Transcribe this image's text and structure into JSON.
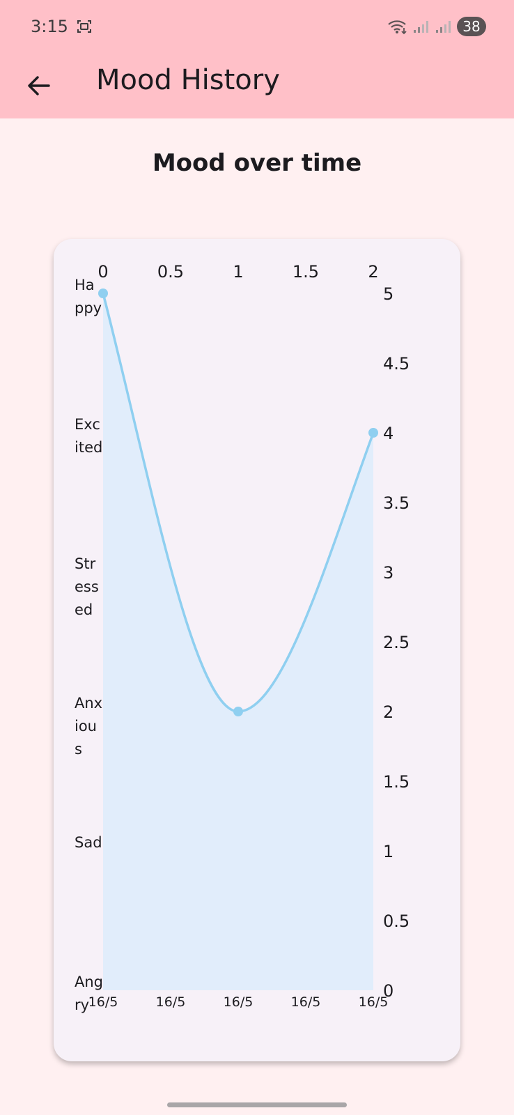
{
  "status_bar": {
    "time": "3:15",
    "battery": "38"
  },
  "app_bar": {
    "title": "Mood History",
    "back_icon": "arrow-left-icon"
  },
  "colors": {
    "app_bar": "#ffc0c8",
    "line": "#8fcff0",
    "fill": "#e1edfb",
    "card": "#f7f1f8"
  },
  "chart_data": {
    "type": "line",
    "title": "Mood over time",
    "x": [
      0,
      1,
      2
    ],
    "y": [
      5,
      2,
      4
    ],
    "smooth": true,
    "area_fill": true,
    "xlim": [
      0,
      2
    ],
    "ylim": [
      0,
      5
    ],
    "top_ticks": [
      "0",
      "0.5",
      "1",
      "1.5",
      "2"
    ],
    "right_ticks": [
      "0",
      "0.5",
      "1",
      "1.5",
      "2",
      "2.5",
      "3",
      "3.5",
      "4",
      "4.5",
      "5"
    ],
    "bottom_ticks": [
      "16/5",
      "16/5",
      "16/5",
      "16/5",
      "16/5"
    ],
    "left_labels": [
      {
        "value": 5,
        "lines": [
          "Ha",
          "ppy"
        ]
      },
      {
        "value": 4,
        "lines": [
          "Exc",
          "ited"
        ]
      },
      {
        "value": 3,
        "lines": [
          "Str",
          "ess",
          "ed"
        ]
      },
      {
        "value": 2,
        "lines": [
          "Anx",
          "iou",
          "s"
        ]
      },
      {
        "value": 1,
        "lines": [
          "Sad"
        ]
      },
      {
        "value": 0,
        "lines": [
          "Ang",
          "ry"
        ]
      }
    ],
    "grid": false,
    "legend": "none"
  }
}
